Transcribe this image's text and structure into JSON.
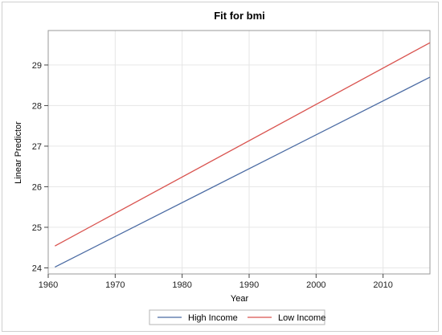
{
  "chart_data": {
    "type": "line",
    "title": "Fit for bmi",
    "xlabel": "Year",
    "ylabel": "Linear Predictor",
    "xlim": [
      1960,
      2017
    ],
    "ylim": [
      23.85,
      29.85
    ],
    "xticks": [
      1960,
      1970,
      1980,
      1990,
      2000,
      2010
    ],
    "yticks": [
      24,
      25,
      26,
      27,
      28,
      29
    ],
    "grid": true,
    "legend": "bottom",
    "series": [
      {
        "name": "High Income",
        "color": "#4b6ba3",
        "x": [
          1961,
          2017
        ],
        "y": [
          24.02,
          28.7
        ]
      },
      {
        "name": "Low Income",
        "color": "#d9534f",
        "x": [
          1961,
          2017
        ],
        "y": [
          24.54,
          29.55
        ]
      }
    ]
  }
}
